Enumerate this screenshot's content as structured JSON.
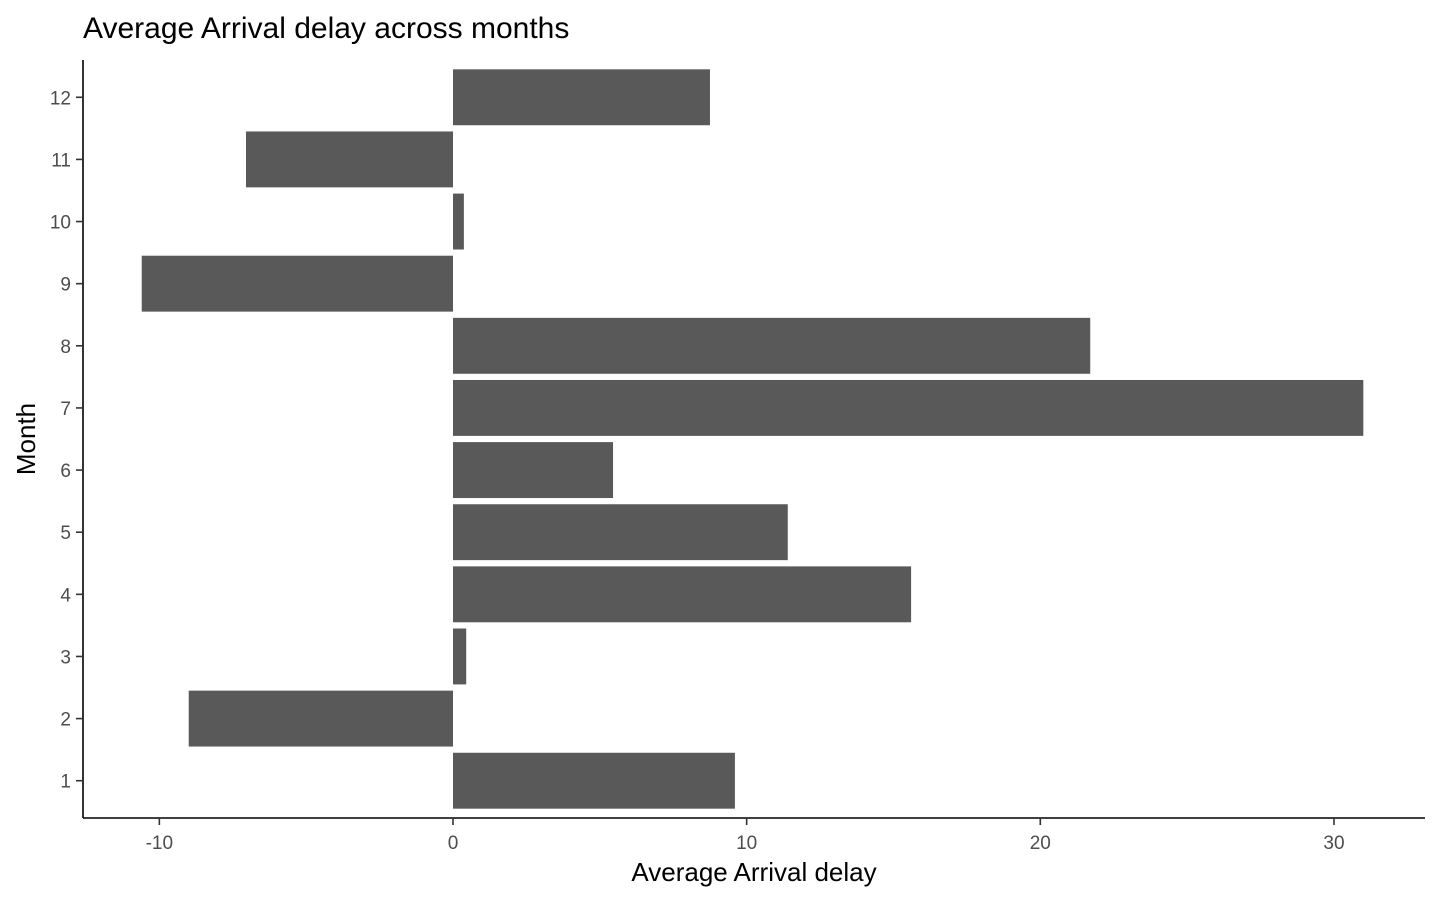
{
  "chart_data": {
    "type": "bar",
    "orientation": "horizontal",
    "title": "Average Arrival delay across months",
    "xlabel": "Average Arrival delay",
    "ylabel": "Month",
    "categories": [
      "1",
      "2",
      "3",
      "4",
      "5",
      "6",
      "7",
      "8",
      "9",
      "10",
      "11",
      "12"
    ],
    "values": [
      9.6,
      -9.0,
      0.45,
      15.6,
      11.4,
      5.45,
      31.0,
      21.7,
      -10.6,
      0.37,
      -7.05,
      8.75
    ],
    "xlim": [
      -12.6,
      33.1
    ],
    "xticks": [
      -10,
      0,
      10,
      20,
      30
    ],
    "xtick_labels": [
      "-10",
      "0",
      "10",
      "20",
      "30"
    ],
    "grid": false,
    "legend": "none",
    "bar_color": "#595959"
  }
}
